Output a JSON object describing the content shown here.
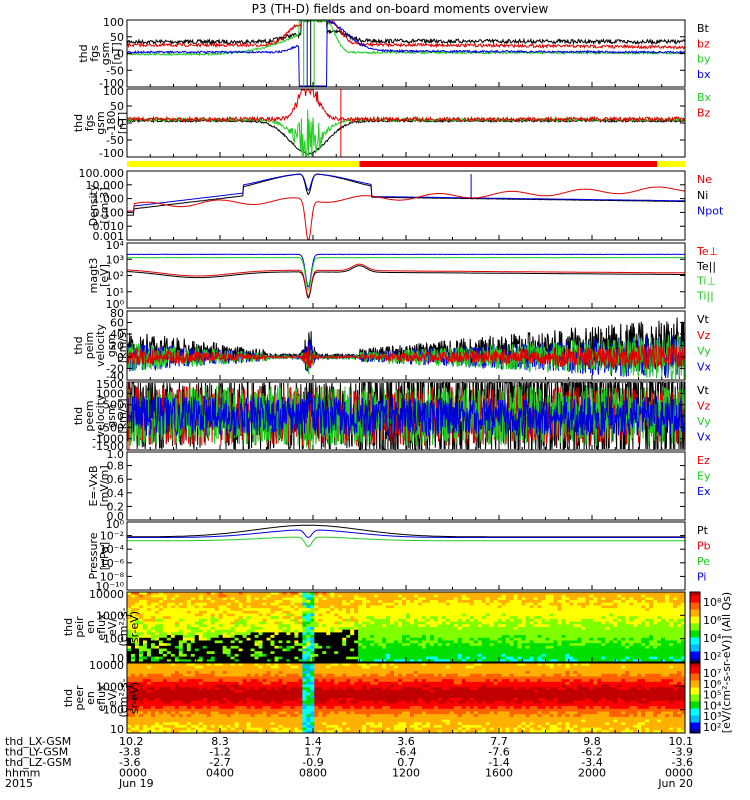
{
  "title": "P3 (TH-D) fields and on-board moments overview",
  "colors": {
    "black": "#000000",
    "red": "#e00000",
    "green": "#22cc22",
    "blue": "#0000dd",
    "yellow": "#ffff00",
    "redbar": "#ee0000"
  },
  "chart_data": {
    "type": "line",
    "x_range_hours": [
      0,
      24
    ],
    "panels": [
      {
        "id": "fgs",
        "ylabel": [
          "thd",
          "fgs",
          "gsm",
          "[nT]"
        ],
        "yticks": [
          "100",
          "50",
          "0",
          "-50",
          "-100"
        ],
        "legend": [
          {
            "t": "Bt",
            "c": "black"
          },
          {
            "t": "bz",
            "c": "red"
          },
          {
            "t": "by",
            "c": "green"
          },
          {
            "t": "bx",
            "c": "blue"
          }
        ]
      },
      {
        "id": "fgs180",
        "ylabel": [
          "thd",
          "fgs",
          "gsm",
          "-180",
          "[nT]"
        ],
        "yticks": [
          "100",
          "50",
          "0",
          "-50",
          "-100"
        ],
        "legend": [
          {
            "t": "Bx",
            "c": "green"
          },
          {
            "t": "Bz",
            "c": "red"
          }
        ]
      },
      {
        "id": "density",
        "ylabel": [
          "Density",
          "[cm-3]"
        ],
        "yticks": [
          "100.000",
          "10.000",
          "1.000",
          "0.100",
          "0.010",
          "0.001"
        ],
        "legend": [
          {
            "t": "Ne",
            "c": "red"
          },
          {
            "t": "Ni",
            "c": "black"
          },
          {
            "t": "Npot",
            "c": "blue"
          }
        ]
      },
      {
        "id": "temp",
        "ylabel": [
          "magt3",
          "[eV]"
        ],
        "yticks": [
          "10⁴",
          "10³",
          "10²",
          "10¹",
          "10⁰"
        ],
        "legend": [
          {
            "t": "Te⊥",
            "c": "red"
          },
          {
            "t": "Te||",
            "c": "black"
          },
          {
            "t": "Ti⊥",
            "c": "green"
          },
          {
            "t": "Ti||",
            "c": "green"
          }
        ]
      },
      {
        "id": "peim",
        "ylabel": [
          "thd",
          "peim",
          "velocity",
          "gsm",
          "[km/s]"
        ],
        "yticks": [
          "80",
          "60",
          "40",
          "20",
          "0",
          "-20",
          "-40"
        ],
        "legend": [
          {
            "t": "Vt",
            "c": "black"
          },
          {
            "t": "Vz",
            "c": "red"
          },
          {
            "t": "Vy",
            "c": "green"
          },
          {
            "t": "Vx",
            "c": "blue"
          }
        ]
      },
      {
        "id": "peem",
        "ylabel": [
          "thd",
          "peem",
          "velocity",
          "gsm",
          "[km/s]"
        ],
        "yticks": [
          "1500",
          "1000",
          "500",
          "0",
          "-500",
          "-1000",
          "-1500"
        ],
        "legend": [
          {
            "t": "Vt",
            "c": "black"
          },
          {
            "t": "Vz",
            "c": "red"
          },
          {
            "t": "Vy",
            "c": "green"
          },
          {
            "t": "Vx",
            "c": "blue"
          }
        ]
      },
      {
        "id": "efield",
        "ylabel": [
          "E=-VxB",
          "[mV/m]"
        ],
        "yticks": [
          "1.0",
          "0.8",
          "0.6",
          "0.4",
          "0.2",
          "0.0"
        ],
        "legend": [
          {
            "t": "Ez",
            "c": "red"
          },
          {
            "t": "Ey",
            "c": "green"
          },
          {
            "t": "Ex",
            "c": "blue"
          }
        ]
      },
      {
        "id": "pressure",
        "ylabel": [
          "Pressure",
          "[nPa]"
        ],
        "yticks": [
          "10⁰",
          "10⁻²",
          "10⁻⁴",
          "10⁻⁶",
          "10⁻⁸",
          "10⁻¹⁰"
        ],
        "legend": [
          {
            "t": "Pt",
            "c": "black"
          },
          {
            "t": "Pb",
            "c": "red"
          },
          {
            "t": "Pe",
            "c": "green"
          },
          {
            "t": "Pi",
            "c": "blue"
          }
        ]
      },
      {
        "id": "peir",
        "ylabel": [
          "thd",
          "peir",
          "en",
          "eflux",
          "eV/",
          "(cm²-s-",
          "sr-eV)"
        ],
        "yticks": [
          "10000",
          "1000",
          "100",
          "10"
        ],
        "cbar_ticks": [
          "10⁸",
          "10⁶",
          "10⁴",
          "10²"
        ]
      },
      {
        "id": "peer",
        "ylabel": [
          "thd",
          "peer",
          "en",
          "eflux",
          "eV/",
          "(cm²-s-",
          "sr-eV)"
        ],
        "yticks": [
          "10000",
          "1000",
          "100",
          "10"
        ],
        "cbar_ticks": [
          "10⁷",
          "10⁶",
          "10⁵",
          "10⁴",
          "10³",
          "10²"
        ]
      }
    ],
    "cbar_label": "[eV/(cm²-s-sr-eV)] (All Qs)",
    "mode_bar": {
      "yellow_end_hour": 10.0,
      "red_end_hour": 22.8
    },
    "x_axis_rows": [
      {
        "label": "thd_LX-GSM",
        "values": [
          "10.2",
          "8.3",
          "1.4",
          "3.6",
          "7.7",
          "9.8",
          "10.1"
        ]
      },
      {
        "label": "thd_LY-GSM",
        "values": [
          "-3.8",
          "-1.2",
          "1.7",
          "-6.4",
          "-7.6",
          "-6.2",
          "-3.9"
        ]
      },
      {
        "label": "thd_LZ-GSM",
        "values": [
          "-3.6",
          "-2.7",
          "-0.9",
          "0.7",
          "-1.4",
          "-3.4",
          "-3.6"
        ]
      },
      {
        "label": "hhmm",
        "values": [
          "0000",
          "0400",
          "0800",
          "1200",
          "1600",
          "2000",
          "0000"
        ]
      },
      {
        "label": "2015",
        "values": [
          "Jun 19",
          "",
          "",
          "",
          "",
          "",
          "Jun 20"
        ]
      }
    ]
  }
}
